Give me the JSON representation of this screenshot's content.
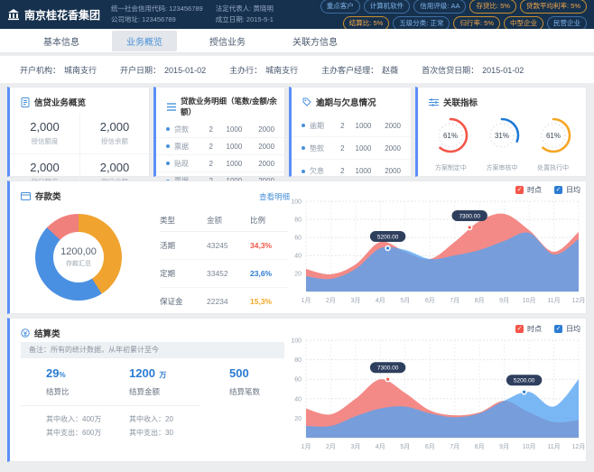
{
  "header": {
    "company": "南京桂花香集团",
    "info_lines": [
      "统一社会信用代码: 123456789",
      "公司地址: 123456789",
      "法定代表人: 黄晓明",
      "成立日期: 2015-5-1"
    ],
    "tags_row1": [
      {
        "label": "重点客户",
        "color": "blue"
      },
      {
        "label": "计算机软件",
        "color": "blue"
      },
      {
        "label": "信用评级: AA",
        "color": "blue"
      },
      {
        "label": "存贷比: 5%",
        "color": "orange"
      },
      {
        "label": "贷款平均利率: 5%",
        "color": "orange"
      }
    ],
    "tags_row2": [
      {
        "label": "结算比: 5%",
        "color": "orange"
      },
      {
        "label": "五级分类: 正常",
        "color": "blue"
      },
      {
        "label": "归行率: 5%",
        "color": "orange"
      },
      {
        "label": "中型企业",
        "color": "orange"
      },
      {
        "label": "民营企业",
        "color": "blue"
      }
    ]
  },
  "tabs": [
    {
      "label": "基本信息",
      "active": false
    },
    {
      "label": "业务概览",
      "active": true
    },
    {
      "label": "授信业务",
      "active": false
    },
    {
      "label": "关联方信息",
      "active": false
    }
  ],
  "account_info": [
    {
      "label": "开户机构：",
      "value": "城南支行"
    },
    {
      "label": "开户日期：",
      "value": "2015-01-02"
    },
    {
      "label": "主办行：",
      "value": "城南支行"
    },
    {
      "label": "主办客户经理：",
      "value": "赵薇"
    },
    {
      "label": "首次信贷日期：",
      "value": "2015-01-02"
    }
  ],
  "credit_overview": {
    "title": "信贷业务概览",
    "items": [
      {
        "value": "2,000",
        "label": "授信额度"
      },
      {
        "value": "2,000",
        "label": "授信余额"
      },
      {
        "value": "2,000",
        "label": "敞口额度"
      },
      {
        "value": "2,000",
        "label": "敞口余额"
      }
    ]
  },
  "loan_detail": {
    "title": "贷款业务明细（笔数/金额/余额）",
    "rows": [
      {
        "name": "贷款",
        "count": "2",
        "amount": "1000",
        "balance": "2000"
      },
      {
        "name": "票据",
        "count": "2",
        "amount": "1000",
        "balance": "2000"
      },
      {
        "name": "贴现",
        "count": "2",
        "amount": "1000",
        "balance": "2000"
      },
      {
        "name": "票据",
        "count": "2",
        "amount": "1000",
        "balance": "2000"
      }
    ]
  },
  "overdue": {
    "title": "逾期与欠息情况",
    "rows": [
      {
        "name": "逾期",
        "count": "2",
        "amount": "1000",
        "balance": "2000"
      },
      {
        "name": "垫款",
        "count": "2",
        "amount": "1000",
        "balance": "2000"
      },
      {
        "name": "欠息",
        "count": "2",
        "amount": "1000",
        "balance": "2000"
      }
    ]
  },
  "indicators": {
    "title": "关联指标",
    "gauges": [
      {
        "percent": 61,
        "color": "#f4564a",
        "label": "方案制定中"
      },
      {
        "percent": 31,
        "color": "#1f7ad4",
        "label": "方案审核中"
      },
      {
        "percent": 61,
        "color": "#f5a623",
        "label": "处置执行中"
      }
    ]
  },
  "deposit": {
    "title": "存款类",
    "detail_link": "查看明细",
    "donut": {
      "center_value": "1200,00",
      "center_label": "存款汇总",
      "segments": [
        {
          "color": "#f0a32f",
          "pct": 41
        },
        {
          "color": "#4a90e2",
          "pct": 46
        },
        {
          "color": "#f0807c",
          "pct": 13
        }
      ]
    },
    "table": {
      "headers": [
        "类型",
        "金额",
        "比例"
      ],
      "rows": [
        {
          "type": "活期",
          "amount": "43245",
          "ratio": "34,3%",
          "ratio_color": "#f4564a"
        },
        {
          "type": "定期",
          "amount": "33452",
          "ratio": "23,6%",
          "ratio_color": "#2b7cd3"
        },
        {
          "type": "保证金",
          "amount": "22234",
          "ratio": "15,3%",
          "ratio_color": "#f5a623"
        }
      ]
    }
  },
  "settlement": {
    "title": "结算类",
    "note": "备注：所有的统计数据，从年初累计至今",
    "stats": [
      {
        "value": "29",
        "unit": "%",
        "label": "结算比"
      },
      {
        "value": "1200",
        "unit": "万",
        "label": "结算金额"
      },
      {
        "value": "500",
        "unit": "",
        "label": "结算笔数"
      }
    ],
    "sub_stats": [
      "其中收入：400万",
      "其中支出：600万",
      "其中收入：20",
      "其中支出：30"
    ]
  },
  "legend": {
    "spot_label": "时点",
    "spot_color": "#f4564a",
    "daily_label": "日均",
    "daily_color": "#2b7cd3",
    "check": "✓"
  },
  "chart_data": [
    {
      "type": "area",
      "section": "存款类",
      "x": [
        "1月",
        "2月",
        "3月",
        "4月",
        "5月",
        "6月",
        "7月",
        "8月",
        "9月",
        "10月",
        "11月",
        "12月"
      ],
      "ylim": [
        0,
        100
      ],
      "yticks": [
        20,
        40,
        60,
        80,
        100
      ],
      "grid": true,
      "legend": [
        "时点",
        "日均"
      ],
      "legend_position": "top-right",
      "series": [
        {
          "name": "时点",
          "color": "rgba(241,118,114,0.85)",
          "values": [
            25,
            19,
            30,
            55,
            44,
            36,
            55,
            78,
            86,
            68,
            44,
            66
          ]
        },
        {
          "name": "日均",
          "color": "rgba(84,163,242,0.78)",
          "values": [
            17,
            14,
            25,
            48,
            46,
            36,
            40,
            46,
            56,
            65,
            41,
            58
          ]
        }
      ],
      "tooltips": [
        {
          "label": "5200.00",
          "x": 3.3,
          "y": 48,
          "color": "#2b7cd3"
        },
        {
          "label": "7300.00",
          "x": 6.6,
          "y": 71,
          "color": "#f4564a"
        }
      ]
    },
    {
      "type": "area",
      "section": "结算类",
      "x": [
        "1月",
        "2月",
        "3月",
        "4月",
        "5月",
        "6月",
        "7月",
        "8月",
        "9月",
        "10月",
        "11月",
        "12月"
      ],
      "ylim": [
        0,
        100
      ],
      "yticks": [
        20,
        40,
        60,
        80,
        100
      ],
      "grid": true,
      "legend": [
        "时点",
        "日均"
      ],
      "legend_position": "top-right",
      "series": [
        {
          "name": "时点",
          "color": "rgba(241,118,114,0.85)",
          "values": [
            30,
            24,
            40,
            60,
            46,
            28,
            23,
            26,
            38,
            26,
            16,
            18
          ]
        },
        {
          "name": "日均",
          "color": "rgba(84,163,242,0.78)",
          "values": [
            12,
            12,
            22,
            30,
            32,
            25,
            21,
            25,
            38,
            47,
            32,
            60
          ]
        }
      ],
      "tooltips": [
        {
          "label": "7300.00",
          "x": 3.3,
          "y": 60,
          "color": "#f4564a"
        },
        {
          "label": "5200.00",
          "x": 8.8,
          "y": 47,
          "color": "#2b7cd3"
        }
      ]
    }
  ]
}
